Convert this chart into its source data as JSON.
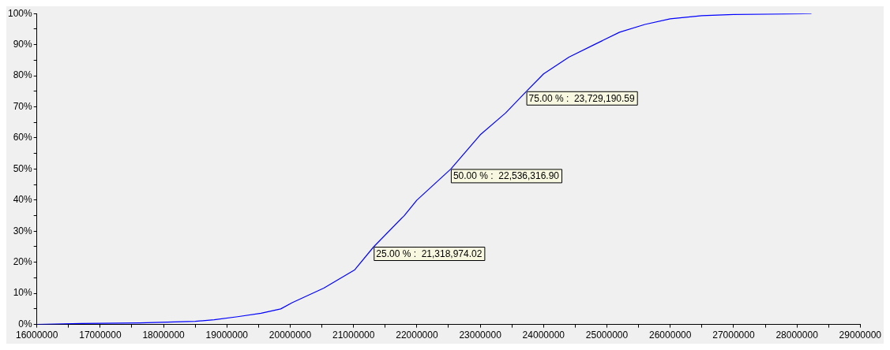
{
  "chart_data": {
    "type": "line",
    "x": [
      16000000,
      16700000,
      17630000,
      18500000,
      18800000,
      19170000,
      19540000,
      19850000,
      20030000,
      20530000,
      21020000,
      21318974.02,
      21800000,
      22000000,
      22536316.9,
      23000000,
      23400000,
      23729190.59,
      24000000,
      24400000,
      24800000,
      25200000,
      25600000,
      26000000,
      26500000,
      27000000,
      28230000
    ],
    "values": [
      0,
      0.3,
      0.5,
      1,
      1.5,
      2.5,
      3.6,
      5,
      7,
      11.7,
      17.6,
      25,
      35,
      40,
      50,
      61,
      68,
      75,
      80.6,
      86,
      90,
      94,
      96.5,
      98.3,
      99.3,
      99.7,
      100
    ],
    "color": "#0000ff",
    "xlim": [
      16000000,
      29000000
    ],
    "xticks": [
      16000000,
      {
        "value": 16500000,
        "label": null
      },
      17000000,
      {
        "value": 17500000,
        "label": null
      },
      18000000,
      {
        "value": 18500000,
        "label": null
      },
      19000000,
      {
        "value": 19500000,
        "label": null
      },
      20000000,
      {
        "value": 20500000,
        "label": null
      },
      21000000,
      {
        "value": 21500000,
        "label": null
      },
      22000000,
      {
        "value": 22500000,
        "label": null
      },
      23000000,
      {
        "value": 23500000,
        "label": null
      },
      24000000,
      {
        "value": 24500000,
        "label": null
      },
      25000000,
      {
        "value": 25500000,
        "label": null
      },
      26000000,
      {
        "value": 26500000,
        "label": null
      },
      27000000,
      {
        "value": 27500000,
        "label": null
      },
      28000000,
      {
        "value": 28500000,
        "label": null
      },
      29000000
    ],
    "ylim": [
      0,
      100
    ],
    "yticks": [
      {
        "value": 0,
        "label": "0%"
      },
      {
        "value": 5,
        "label": null
      },
      {
        "value": 10,
        "label": "10%"
      },
      {
        "value": 15,
        "label": null
      },
      {
        "value": 20,
        "label": "20%"
      },
      {
        "value": 25,
        "label": null
      },
      {
        "value": 30,
        "label": "30%"
      },
      {
        "value": 35,
        "label": null
      },
      {
        "value": 40,
        "label": "40%"
      },
      {
        "value": 45,
        "label": null
      },
      {
        "value": 50,
        "label": "50%"
      },
      {
        "value": 55,
        "label": null
      },
      {
        "value": 60,
        "label": "60%"
      },
      {
        "value": 65,
        "label": null
      },
      {
        "value": 70,
        "label": "70%"
      },
      {
        "value": 75,
        "label": null
      },
      {
        "value": 80,
        "label": "80%"
      },
      {
        "value": 85,
        "label": null
      },
      {
        "value": 90,
        "label": "90%"
      },
      {
        "value": 95,
        "label": null
      },
      {
        "value": 100,
        "label": "100%"
      }
    ],
    "annotations": [
      {
        "text": "25.00 % :  21,318,974.02",
        "x": 21318974.02,
        "y": 25
      },
      {
        "text": "50.00 % :  22,536,316.90",
        "x": 22536316.9,
        "y": 50
      },
      {
        "text": "75.00 % :  23,729,190.59",
        "x": 23729190.59,
        "y": 75
      }
    ],
    "grid": false,
    "legend": false,
    "marker": "none",
    "line_style": "solid"
  }
}
